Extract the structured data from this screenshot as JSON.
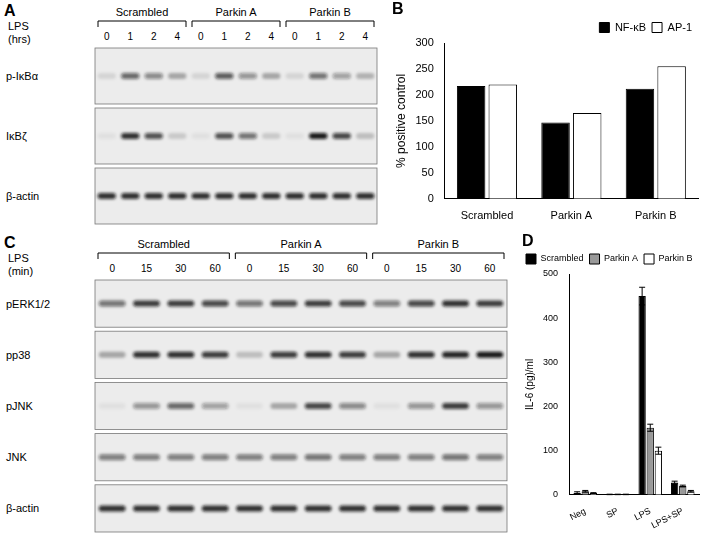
{
  "blots": [
    {
      "panel": "A",
      "treatment": [
        "LPS",
        "(hrs)"
      ],
      "groups": [
        "Scrambled",
        "Parkin A",
        "Parkin B"
      ],
      "lanes": [
        "0",
        "1",
        "2",
        "4"
      ],
      "rows": [
        {
          "label": "p-IκBα",
          "bands": [
            0.1,
            0.6,
            0.45,
            0.3,
            0.1,
            0.65,
            0.4,
            0.3,
            0.1,
            0.55,
            0.35,
            0.25
          ]
        },
        {
          "label": "IκBζ",
          "bands": [
            0.05,
            0.85,
            0.7,
            0.15,
            0.05,
            0.7,
            0.55,
            0.15,
            0.05,
            0.95,
            0.75,
            0.2
          ]
        },
        {
          "label": "β-actin",
          "bands": [
            0.85,
            0.85,
            0.85,
            0.85,
            0.85,
            0.85,
            0.85,
            0.85,
            0.85,
            0.85,
            0.85,
            0.85
          ]
        }
      ]
    },
    {
      "panel": "C",
      "treatment": [
        "LPS",
        "(min)"
      ],
      "groups": [
        "Scrambled",
        "Parkin A",
        "Parkin B"
      ],
      "lanes": [
        "0",
        "15",
        "30",
        "60"
      ],
      "rows": [
        {
          "label": "pERK1/2",
          "bands": [
            0.55,
            0.8,
            0.8,
            0.75,
            0.55,
            0.75,
            0.8,
            0.75,
            0.5,
            0.75,
            0.85,
            0.8
          ]
        },
        {
          "label": "pp38",
          "bands": [
            0.3,
            0.85,
            0.85,
            0.8,
            0.2,
            0.8,
            0.85,
            0.8,
            0.3,
            0.85,
            0.9,
            0.95
          ]
        },
        {
          "label": "pJNK",
          "bands": [
            0.05,
            0.4,
            0.6,
            0.35,
            0.05,
            0.3,
            0.75,
            0.45,
            0.05,
            0.4,
            0.8,
            0.4
          ]
        },
        {
          "label": "JNK",
          "bands": [
            0.5,
            0.5,
            0.5,
            0.5,
            0.5,
            0.5,
            0.55,
            0.5,
            0.5,
            0.5,
            0.55,
            0.5
          ]
        },
        {
          "label": "β-actin",
          "bands": [
            0.85,
            0.85,
            0.85,
            0.85,
            0.85,
            0.85,
            0.85,
            0.85,
            0.85,
            0.85,
            0.85,
            0.85
          ]
        }
      ]
    }
  ],
  "chart_data": [
    {
      "type": "bar",
      "annotations": [
        "B"
      ],
      "y_label": "% positive control",
      "categories": [
        "Scrambled",
        "Parkin A",
        "Parkin B"
      ],
      "series": [
        {
          "name": "NF-κB",
          "color": "#000000",
          "values": [
            217,
            147,
            212
          ]
        },
        {
          "name": "AP-1",
          "color": "#ffffff",
          "values": [
            220,
            165,
            255
          ]
        }
      ],
      "ylim": [
        0,
        300
      ],
      "yticks": [
        0,
        50,
        100,
        150,
        200,
        250,
        300
      ],
      "grid": false,
      "legend": "upper right"
    },
    {
      "type": "bar",
      "annotations": [
        "D"
      ],
      "y_label": "IL-6 (pg)/ml",
      "categories": [
        "Neg",
        "SP",
        "LPS",
        "LPS+SP"
      ],
      "series": [
        {
          "name": "Scrambled",
          "color": "#000000",
          "values": [
            5,
            1,
            450,
            28
          ],
          "errors": [
            2,
            0.5,
            20,
            3
          ]
        },
        {
          "name": "Parkin A",
          "color": "#999999",
          "values": [
            8,
            1,
            152,
            20
          ],
          "errors": [
            2,
            0.5,
            8,
            2
          ]
        },
        {
          "name": "Parkin B",
          "color": "#ffffff",
          "values": [
            4,
            1,
            100,
            8
          ],
          "errors": [
            1,
            0.5,
            8,
            2
          ]
        }
      ],
      "ylim": [
        0,
        500
      ],
      "yticks": [
        0,
        100,
        200,
        300,
        400,
        500
      ],
      "grid": false,
      "legend": "upper left"
    }
  ]
}
